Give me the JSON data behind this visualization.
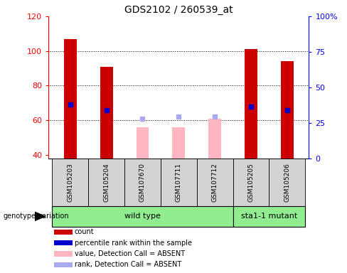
{
  "title": "GDS2102 / 260539_at",
  "samples": [
    "GSM105203",
    "GSM105204",
    "GSM107670",
    "GSM107711",
    "GSM107712",
    "GSM105205",
    "GSM105206"
  ],
  "ylim_left": [
    38,
    120
  ],
  "ylim_right": [
    0,
    100
  ],
  "yticks_left": [
    40,
    60,
    80,
    100,
    120
  ],
  "yticks_right": [
    0,
    25,
    50,
    75,
    100
  ],
  "ytick_labels_right": [
    "0",
    "25",
    "50",
    "75",
    "100%"
  ],
  "red_bars": [
    107,
    91,
    null,
    null,
    null,
    101,
    94
  ],
  "pink_bars": [
    null,
    null,
    56,
    56,
    61,
    null,
    null
  ],
  "blue_squares": [
    69,
    66,
    null,
    null,
    null,
    68,
    66
  ],
  "light_blue_squares": [
    null,
    null,
    61,
    62,
    62,
    null,
    null
  ],
  "baseline": 38,
  "group_box_color": "#90EE90",
  "sample_box_color": "#D3D3D3",
  "red_color": "#CC0000",
  "pink_color": "#FFB6C1",
  "blue_color": "#0000CC",
  "light_blue_color": "#AAAAEE",
  "group_list": [
    {
      "name": "wild type",
      "indices": [
        0,
        1,
        2,
        3,
        4
      ]
    },
    {
      "name": "sta1-1 mutant",
      "indices": [
        5,
        6
      ]
    }
  ],
  "legend_labels": [
    "count",
    "percentile rank within the sample",
    "value, Detection Call = ABSENT",
    "rank, Detection Call = ABSENT"
  ],
  "legend_colors": [
    "#CC0000",
    "#0000CC",
    "#FFB6C1",
    "#AAAAEE"
  ]
}
